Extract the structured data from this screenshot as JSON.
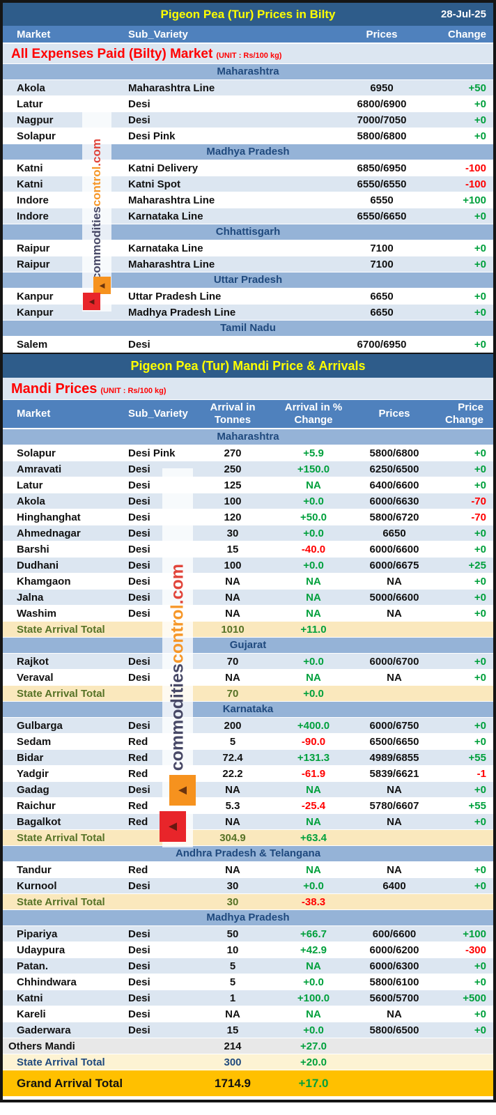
{
  "report": {
    "section1": {
      "title": "Pigeon Pea (Tur) Prices in Bilty",
      "date": "28-Jul-25",
      "subtitle": "All Expenses Paid (Bilty) Market",
      "unit": "(UNIT : Rs/100 kg)",
      "columns": [
        "Market",
        "Sub_Variety",
        "Prices",
        "Change"
      ],
      "groups": [
        {
          "state": "Maharashtra",
          "rows": [
            [
              "Akola",
              "Maharashtra Line",
              "6950",
              "+50"
            ],
            [
              "Latur",
              "Desi",
              "6800/6900",
              "+0"
            ],
            [
              "Nagpur",
              "Desi",
              "7000/7050",
              "+0"
            ],
            [
              "Solapur",
              "Desi Pink",
              "5800/6800",
              "+0"
            ]
          ]
        },
        {
          "state": "Madhya Pradesh",
          "rows": [
            [
              "Katni",
              "Katni Delivery",
              "6850/6950",
              "-100"
            ],
            [
              "Katni",
              "Katni Spot",
              "6550/6550",
              "-100"
            ],
            [
              "Indore",
              "Maharashtra Line",
              "6550",
              "+100"
            ],
            [
              "Indore",
              "Karnataka Line",
              "6550/6650",
              "+0"
            ]
          ]
        },
        {
          "state": "Chhattisgarh",
          "rows": [
            [
              "Raipur",
              "Karnataka Line",
              "7100",
              "+0"
            ],
            [
              "Raipur",
              "Maharashtra Line",
              "7100",
              "+0"
            ]
          ]
        },
        {
          "state": "Uttar Pradesh",
          "rows": [
            [
              "Kanpur",
              "Uttar Pradesh Line",
              "6650",
              "+0"
            ],
            [
              "Kanpur",
              "Madhya Pradesh Line",
              "6650",
              "+0"
            ]
          ]
        },
        {
          "state": "Tamil Nadu",
          "rows": [
            [
              "Salem",
              "Desi",
              "6700/6950",
              "+0"
            ]
          ]
        }
      ]
    },
    "section2": {
      "title": "Pigeon Pea (Tur) Mandi Price & Arrivals",
      "subtitle": "Mandi Prices",
      "unit": "(UNIT : Rs/100 kg)",
      "columns": [
        "Market",
        "Sub_Variety",
        "Arrival in Tonnes",
        "Arrival  in % Change",
        "Prices",
        "Price Change"
      ],
      "groups": [
        {
          "state": "Maharashtra",
          "rows": [
            [
              "Solapur",
              "Desi Pink",
              "270",
              "+5.9",
              "5800/6800",
              "+0"
            ],
            [
              "Amravati",
              "Desi",
              "250",
              "+150.0",
              "6250/6500",
              "+0"
            ],
            [
              "Latur",
              "Desi",
              "125",
              "NA",
              "6400/6600",
              "+0"
            ],
            [
              "Akola",
              "Desi",
              "100",
              "+0.0",
              "6000/6630",
              "-70"
            ],
            [
              "Hinghanghat",
              "Desi",
              "120",
              "+50.0",
              "5800/6720",
              "-70"
            ],
            [
              "Ahmednagar",
              "Desi",
              "30",
              "+0.0",
              "6650",
              "+0"
            ],
            [
              "Barshi",
              "Desi",
              "15",
              "-40.0",
              "6000/6600",
              "+0"
            ],
            [
              "Dudhani",
              "Desi",
              "100",
              "+0.0",
              "6000/6675",
              "+25"
            ],
            [
              "Khamgaon",
              "Desi",
              "NA",
              "NA",
              "NA",
              "+0"
            ],
            [
              "Jalna",
              "Desi",
              "NA",
              "NA",
              "5000/6600",
              "+0"
            ],
            [
              "Washim",
              "Desi",
              "NA",
              "NA",
              "NA",
              "+0"
            ]
          ],
          "total": {
            "label": "State Arrival Total",
            "tonnes": "1010",
            "pct": "+11.0"
          }
        },
        {
          "state": "Gujarat",
          "rows": [
            [
              "Rajkot",
              "Desi",
              "70",
              "+0.0",
              "6000/6700",
              "+0"
            ],
            [
              "Veraval",
              "Desi",
              "NA",
              "NA",
              "NA",
              "+0"
            ]
          ],
          "total": {
            "label": "State Arrival Total",
            "tonnes": "70",
            "pct": "+0.0"
          }
        },
        {
          "state": "Karnataka",
          "rows": [
            [
              "Gulbarga",
              "Desi",
              "200",
              "+400.0",
              "6000/6750",
              "+0"
            ],
            [
              "Sedam",
              "Red",
              "5",
              "-90.0",
              "6500/6650",
              "+0"
            ],
            [
              "Bidar",
              "Red",
              "72.4",
              "+131.3",
              "4989/6855",
              "+55"
            ],
            [
              "Yadgir",
              "Red",
              "22.2",
              "-61.9",
              "5839/6621",
              "-1"
            ],
            [
              "Gadag",
              "Desi",
              "NA",
              "NA",
              "NA",
              "+0"
            ],
            [
              "Raichur",
              "Red",
              "5.3",
              "-25.4",
              "5780/6607",
              "+55"
            ],
            [
              "Bagalkot",
              "Red",
              "NA",
              "NA",
              "NA",
              "+0"
            ]
          ],
          "total": {
            "label": "State Arrival Total",
            "tonnes": "304.9",
            "pct": "+63.4"
          }
        },
        {
          "state": "Andhra Pradesh & Telangana",
          "rows": [
            [
              "Tandur",
              "Red",
              "NA",
              "NA",
              "NA",
              "+0"
            ],
            [
              "Kurnool",
              "Desi",
              "30",
              "+0.0",
              "6400",
              "+0"
            ]
          ],
          "total": {
            "label": "State Arrival Total",
            "tonnes": "30",
            "pct": "-38.3"
          }
        },
        {
          "state": "Madhya Pradesh",
          "rows": [
            [
              "Pipariya",
              "Desi",
              "50",
              "+66.7",
              "600/6600",
              "+100"
            ],
            [
              "Udaypura",
              "Desi",
              "10",
              "+42.9",
              "6000/6200",
              "-300"
            ],
            [
              "Patan.",
              "Desi",
              "5",
              "NA",
              "6000/6300",
              "+0"
            ],
            [
              "Chhindwara",
              "Desi",
              "5",
              "+0.0",
              "5800/6100",
              "+0"
            ],
            [
              "Katni",
              "Desi",
              "1",
              "+100.0",
              "5600/5700",
              "+500"
            ],
            [
              "Kareli",
              "Desi",
              "NA",
              "NA",
              "NA",
              "+0"
            ],
            [
              "Gaderwara",
              "Desi",
              "15",
              "+0.0",
              "5800/6500",
              "+0"
            ]
          ],
          "others": {
            "label": "Others Mandi",
            "tonnes": "214",
            "pct": "+27.0"
          },
          "total": {
            "label": "State Arrival Total",
            "tonnes": "300",
            "pct": "+20.0"
          }
        }
      ],
      "grand_total": {
        "label": "Grand Arrival Total",
        "tonnes": "1714.9",
        "pct": "+17.0"
      }
    },
    "watermark": {
      "brand": "commoditiescontrol.com",
      "part1": "commodities",
      "part2": "control",
      "part3": ".com"
    },
    "colors": {
      "title_bg": "#2E5C8A",
      "header_bg": "#4F81BD",
      "state_bg": "#95B3D7",
      "row_alt": "#DCE6F1",
      "cream_total": "#FAE8BD",
      "yellow_total": "#FDF3D3",
      "others_gray": "#E8E8E8",
      "grand_amber": "#FFC000",
      "green": "#00A03C",
      "red": "#FF0000",
      "navy": "#1F497D",
      "total_green": "#567226",
      "title_yellow": "#FFFF00",
      "subtitle_red": "#FF0000"
    }
  }
}
